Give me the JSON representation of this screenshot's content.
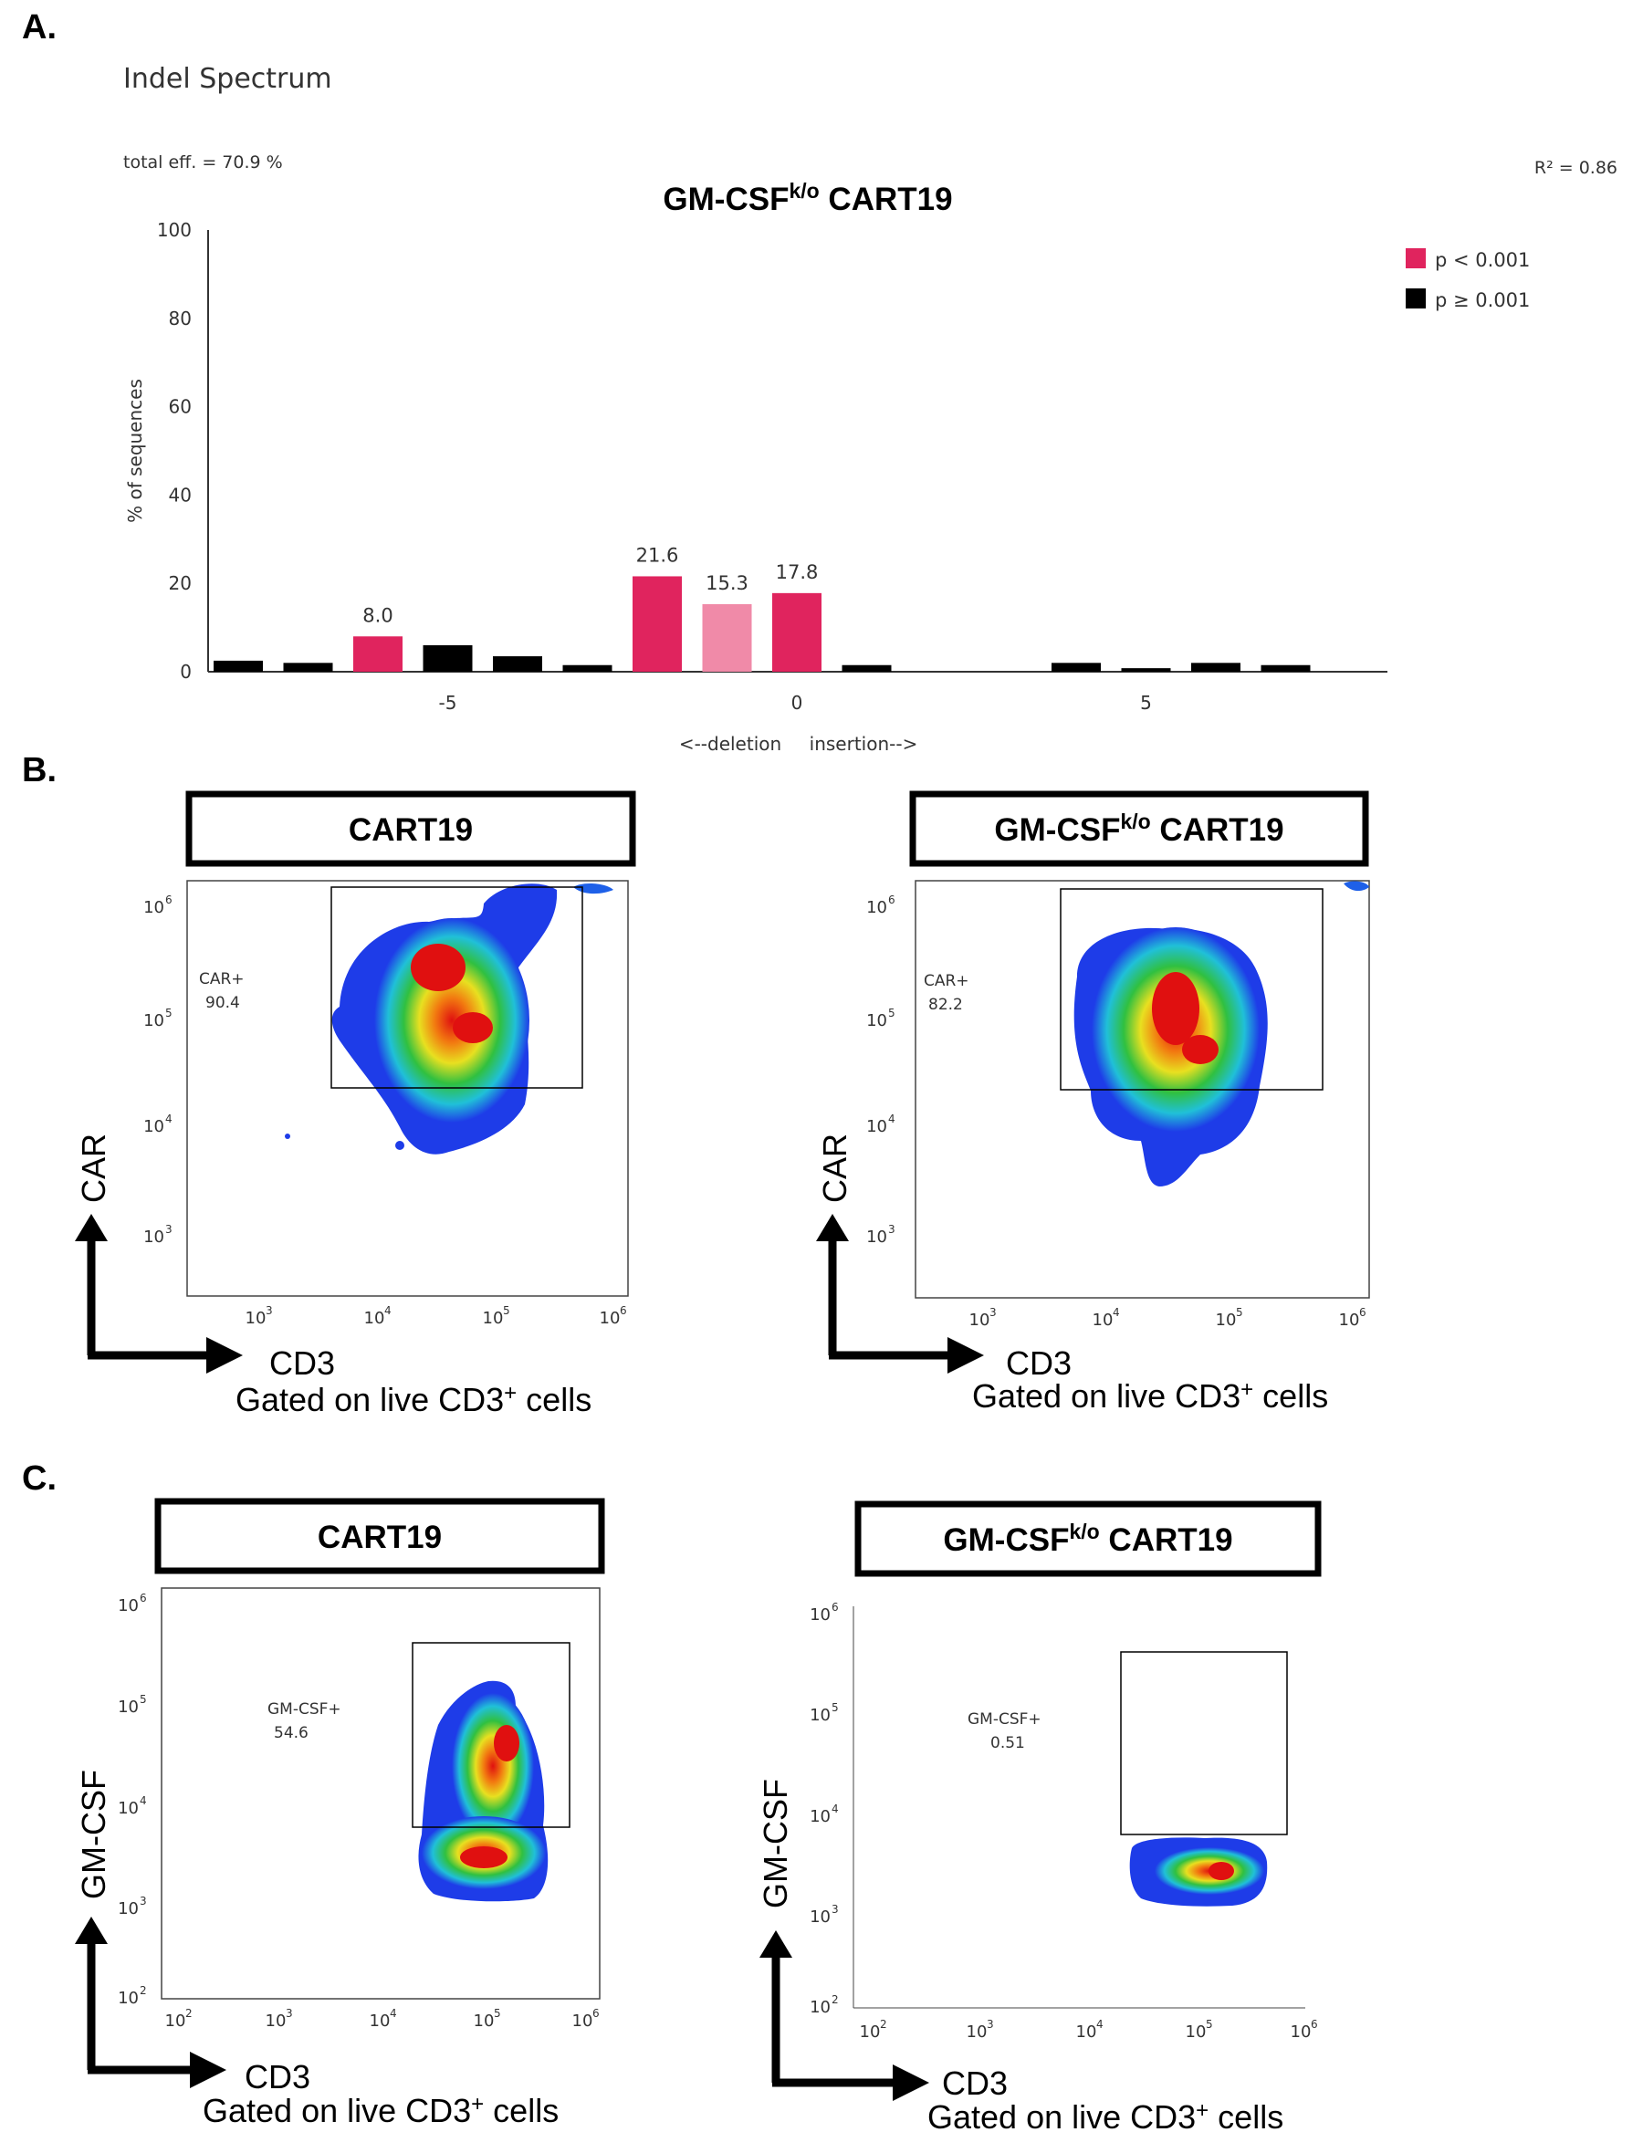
{
  "panels": {
    "a": "A.",
    "b": "B.",
    "c": "C."
  },
  "chart_data": [
    {
      "type": "bar",
      "suptitle": "Indel Spectrum",
      "title": "GM-CSF",
      "title_sup": "k/o",
      "title_tail": " CART19",
      "note_left": "total eff. = 70.9 %",
      "note_right": "R² = 0.86",
      "ylabel": "% of sequences",
      "xlabel_left": "<--deletion",
      "xlabel_right": "insertion-->",
      "ylim": [
        0,
        100
      ],
      "yticks": [
        "0",
        "20",
        "40",
        "60",
        "80",
        "100"
      ],
      "xticks": [
        "-5",
        "0",
        "5"
      ],
      "legend": [
        {
          "label": "p < 0.001",
          "color": "#e0245e"
        },
        {
          "label": "p ≥ 0.001",
          "color": "#000000"
        }
      ],
      "colors": {
        "sig": "#e0245e",
        "sig_light": "#f08aa8",
        "nonsig": "#000000"
      },
      "bars": [
        {
          "x": -8,
          "value": 2.5,
          "group": "nonsig"
        },
        {
          "x": -7,
          "value": 2.0,
          "group": "nonsig"
        },
        {
          "x": -6,
          "value": 8.0,
          "group": "sig",
          "label": "8.0"
        },
        {
          "x": -5,
          "value": 6.0,
          "group": "nonsig"
        },
        {
          "x": -4,
          "value": 3.5,
          "group": "nonsig"
        },
        {
          "x": -3,
          "value": 1.5,
          "group": "nonsig"
        },
        {
          "x": -2,
          "value": 21.6,
          "group": "sig",
          "label": "21.6"
        },
        {
          "x": -1,
          "value": 15.3,
          "group": "sig_light",
          "label": "15.3"
        },
        {
          "x": 0,
          "value": 17.8,
          "group": "sig",
          "label": "17.8"
        },
        {
          "x": 1,
          "value": 1.5,
          "group": "nonsig"
        },
        {
          "x": 4,
          "value": 2.0,
          "group": "nonsig"
        },
        {
          "x": 5,
          "value": 0.8,
          "group": "nonsig"
        },
        {
          "x": 6,
          "value": 2.0,
          "group": "nonsig"
        },
        {
          "x": 7,
          "value": 1.5,
          "group": "nonsig"
        }
      ]
    },
    {
      "type": "scatter",
      "title": "CART19",
      "xlabel": "CD3",
      "ylabel": "CAR",
      "gate_note": "Gated on live CD3",
      "gate_sup": "+",
      "gate_tail": " cells",
      "gate_label": "CAR+",
      "gate_value": "90.4",
      "xticks": [
        "3",
        "4",
        "5",
        "6"
      ],
      "yticks": [
        "3",
        "4",
        "5",
        "6"
      ]
    },
    {
      "type": "scatter",
      "title": "GM-CSF",
      "title_sup": "k/o",
      "title_tail": " CART19",
      "xlabel": "CD3",
      "ylabel": "CAR",
      "gate_note": "Gated on live CD3",
      "gate_sup": "+",
      "gate_tail": " cells",
      "gate_label": "CAR+",
      "gate_value": "82.2",
      "xticks": [
        "3",
        "4",
        "5",
        "6"
      ],
      "yticks": [
        "3",
        "4",
        "5",
        "6"
      ]
    },
    {
      "type": "scatter",
      "title": "CART19",
      "xlabel": "CD3",
      "ylabel": "GM-CSF",
      "gate_note": "Gated on live CD3",
      "gate_sup": "+",
      "gate_tail": " cells",
      "gate_label": "GM-CSF+",
      "gate_value": "54.6",
      "xticks": [
        "2",
        "3",
        "4",
        "5",
        "6"
      ],
      "yticks": [
        "2",
        "3",
        "4",
        "5",
        "6"
      ]
    },
    {
      "type": "scatter",
      "title": "GM-CSF",
      "title_sup": "k/o",
      "title_tail": " CART19",
      "xlabel": "CD3",
      "ylabel": "GM-CSF",
      "gate_note": "Gated on live CD3",
      "gate_sup": "+",
      "gate_tail": " cells",
      "gate_label": "GM-CSF+",
      "gate_value": "0.51",
      "xticks": [
        "2",
        "3",
        "4",
        "5",
        "6"
      ],
      "yticks": [
        "2",
        "3",
        "4",
        "5",
        "6"
      ]
    }
  ]
}
